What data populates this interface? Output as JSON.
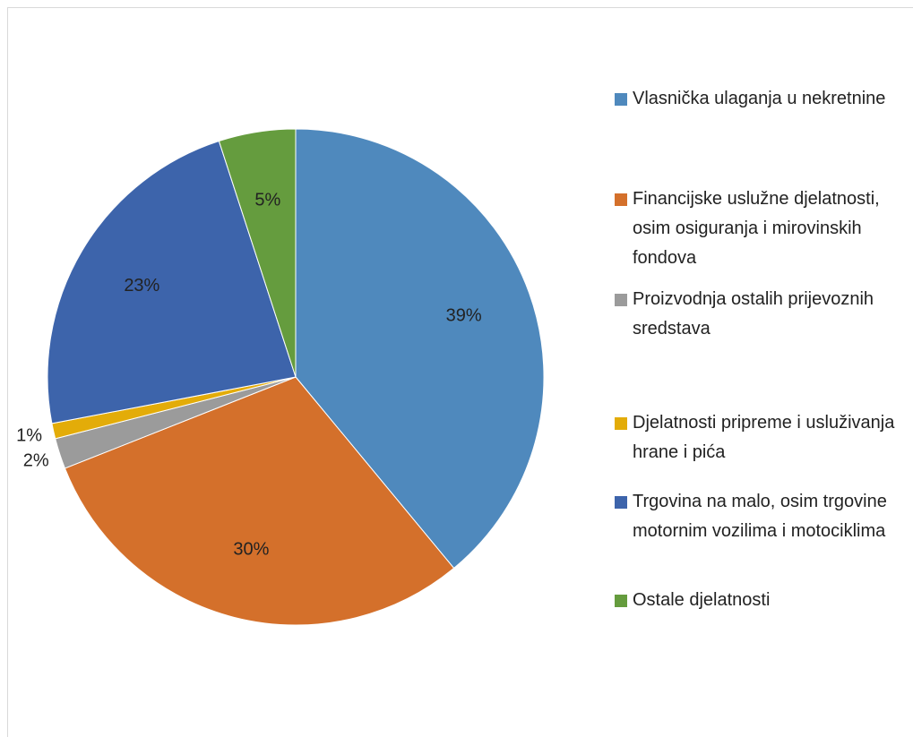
{
  "chart_data": {
    "type": "pie",
    "categories": [
      "Vlasnička ulaganja u nekretnine",
      "Financijske uslužne djelatnosti, osim osiguranja i mirovinskih fondova",
      "Proizvodnja ostalih prijevoznih sredstava",
      "Djelatnosti pripreme i usluživanja hrane i pića",
      "Trgovina na malo, osim trgovine motornim vozilima i motociklima",
      "Ostale djelatnosti"
    ],
    "values": [
      39,
      30,
      2,
      1,
      23,
      5
    ],
    "value_labels": [
      "39%",
      "30%",
      "2%",
      "1%",
      "23%",
      "5%"
    ],
    "colors": [
      "#4f89bd",
      "#d4702b",
      "#9b9b9b",
      "#e3ac09",
      "#3d64ab",
      "#659c3e"
    ],
    "legend": "right"
  }
}
